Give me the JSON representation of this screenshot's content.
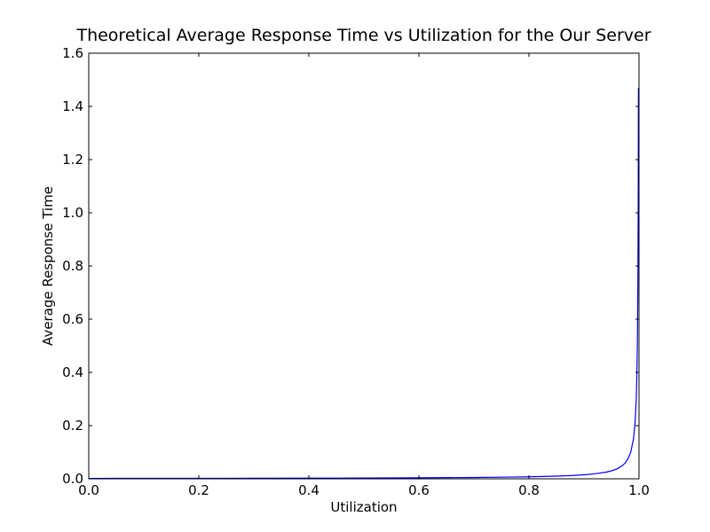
{
  "chart_data": {
    "type": "line",
    "title": "Theoretical Average Response Time vs Utilization for the Our Server",
    "xlabel": "Utilization",
    "ylabel": "Average Response Time",
    "xlim": [
      0.0,
      1.0
    ],
    "ylim": [
      0.0,
      1.6
    ],
    "grid": false,
    "x_ticks": [
      "0.0",
      "0.2",
      "0.4",
      "0.6",
      "0.8",
      "1.0"
    ],
    "y_ticks": [
      "0.0",
      "0.2",
      "0.4",
      "0.6",
      "0.8",
      "1.0",
      "1.2",
      "1.4",
      "1.6"
    ],
    "series_color": "#0000ff",
    "series": [
      {
        "x": [
          0.0,
          0.1,
          0.2,
          0.3,
          0.4,
          0.5,
          0.6,
          0.7,
          0.75,
          0.8,
          0.85,
          0.88,
          0.9,
          0.92,
          0.94,
          0.95,
          0.96,
          0.97,
          0.975,
          0.98,
          0.985,
          0.99,
          0.993,
          0.995,
          0.996,
          0.997,
          0.998,
          0.9985,
          0.999
        ],
        "y": [
          0.0015,
          0.0016,
          0.0018,
          0.0021,
          0.0024,
          0.003,
          0.0037,
          0.005,
          0.006,
          0.0075,
          0.01,
          0.0125,
          0.015,
          0.019,
          0.025,
          0.03,
          0.037,
          0.05,
          0.06,
          0.075,
          0.1,
          0.15,
          0.214,
          0.3,
          0.375,
          0.5,
          0.75,
          1.0,
          1.47
        ]
      }
    ]
  }
}
